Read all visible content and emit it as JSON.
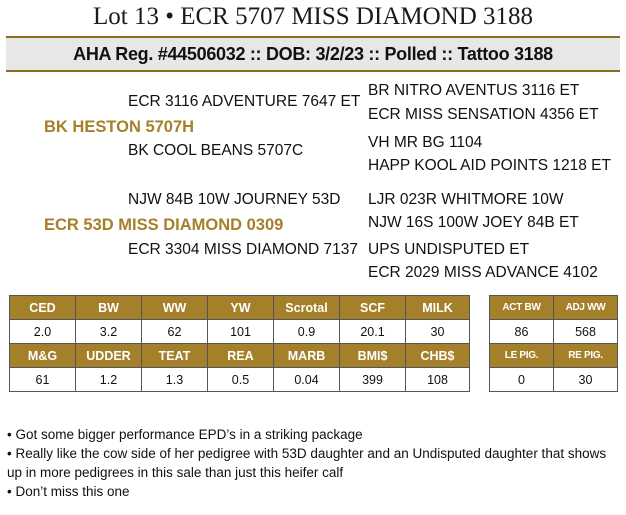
{
  "title": "Lot 13 • ECR 5707 MISS DIAMOND 3188",
  "registration_line": "AHA Reg. #44506032 :: DOB: 3/2/23 :: Polled :: Tattoo 3188",
  "pedigree": {
    "sire": "BK HESTON 5707H",
    "sire_sire": "ECR 3116 ADVENTURE 7647 ET",
    "sire_dam": "BK COOL BEANS 5707C",
    "sire_sire_sire": "BR NITRO AVENTUS 3116 ET",
    "sire_sire_dam": "ECR MISS SENSATION 4356 ET",
    "sire_dam_sire": "VH MR BG 1104",
    "sire_dam_dam": "HAPP KOOL AID POINTS 1218 ET",
    "dam": "ECR 53D MISS DIAMOND 0309",
    "dam_sire": "NJW 84B 10W JOURNEY 53D",
    "dam_dam": "ECR 3304 MISS DIAMOND 7137",
    "dam_sire_sire": "LJR 023R WHITMORE 10W",
    "dam_sire_dam": "NJW 16S 100W JOEY 84B ET",
    "dam_dam_sire": "UPS UNDISPUTED ET",
    "dam_dam_dam": "ECR 2029 MISS ADVANCE 4102"
  },
  "epd_table": {
    "row1_headers": [
      "CED",
      "BW",
      "WW",
      "YW",
      "Scrotal",
      "SCF",
      "MILK"
    ],
    "row1_values": [
      "2.0",
      "3.2",
      "62",
      "101",
      "0.9",
      "20.1",
      "30"
    ],
    "row2_headers": [
      "M&G",
      "UDDER",
      "TEAT",
      "REA",
      "MARB",
      "BMI$",
      "CHB$"
    ],
    "row2_values": [
      "61",
      "1.2",
      "1.3",
      "0.5",
      "0.04",
      "399",
      "108"
    ]
  },
  "actual_table": {
    "row1_headers": [
      "ACT BW",
      "ADJ WW"
    ],
    "row1_values": [
      "86",
      "568"
    ],
    "row2_headers": [
      "LE PIG.",
      "RE PIG."
    ],
    "row2_values": [
      "0",
      "30"
    ]
  },
  "notes": [
    "• Got some bigger performance EPD’s in a striking package",
    "• Really like the cow side of her pedigree with 53D daughter and an Undisputed daughter that shows up in more pedigrees in this sale than just this heifer calf",
    "• Don’t miss this one"
  ],
  "colors": {
    "gold": "#a5802a",
    "band_gray": "#e7e7e7"
  }
}
